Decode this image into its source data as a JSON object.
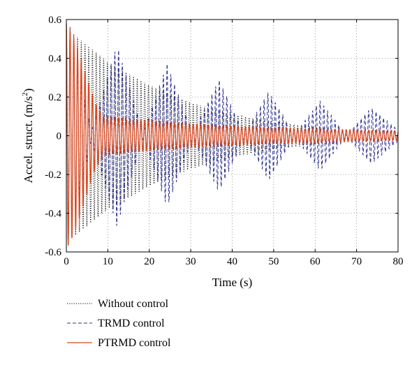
{
  "chart_data": {
    "type": "line",
    "xlabel": "Time (s)",
    "ylabel": "Accel. struct. (m/s",
    "ylabel_sup": "2",
    "ylabel_close": ")",
    "xlim": [
      0,
      80
    ],
    "ylim": [
      -0.6,
      0.6
    ],
    "x_ticks": [
      0,
      10,
      20,
      30,
      40,
      50,
      60,
      70,
      80
    ],
    "x_tick_labels": [
      "0",
      "10",
      "20",
      "30",
      "40",
      "50",
      "60",
      "70",
      "80"
    ],
    "y_ticks": [
      -0.6,
      -0.4,
      -0.2,
      0,
      0.2,
      0.4,
      0.6
    ],
    "y_tick_labels": [
      "-0.6",
      "-0.4",
      "-0.2",
      "0",
      "0.2",
      "0.4",
      "0.6"
    ],
    "grid": true,
    "legend_position": "below-left",
    "series": [
      {
        "name": "Without control",
        "style": "dotted",
        "color": "#000000",
        "oscillation_period_s": 0.9,
        "envelope": {
          "t": [
            0,
            2,
            10,
            20,
            30,
            40,
            50,
            60,
            70,
            80
          ],
          "amp": [
            0.56,
            0.52,
            0.38,
            0.26,
            0.17,
            0.11,
            0.07,
            0.045,
            0.03,
            0.02
          ]
        }
      },
      {
        "name": "TRMD control",
        "style": "dashed",
        "color": "#2e3192",
        "oscillation_period_s": 0.9,
        "envelope": {
          "t": [
            0,
            1,
            6,
            12.2,
            18.5,
            24.3,
            30.5,
            36.8,
            43,
            48.8,
            55,
            61.2,
            67.5,
            73.5,
            80
          ],
          "amp": [
            0.58,
            0.56,
            0.02,
            0.47,
            0.015,
            0.37,
            0.01,
            0.29,
            0.008,
            0.23,
            0.006,
            0.18,
            0.005,
            0.145,
            0.03
          ]
        }
      },
      {
        "name": "PTRMD control",
        "style": "solid",
        "color": "#d9481f",
        "oscillation_period_s": 0.9,
        "envelope": {
          "t": [
            0,
            1,
            3,
            5,
            7,
            9,
            15,
            30,
            50,
            80
          ],
          "amp": [
            0.58,
            0.55,
            0.44,
            0.3,
            0.17,
            0.1,
            0.085,
            0.06,
            0.04,
            0.025
          ]
        }
      }
    ]
  }
}
